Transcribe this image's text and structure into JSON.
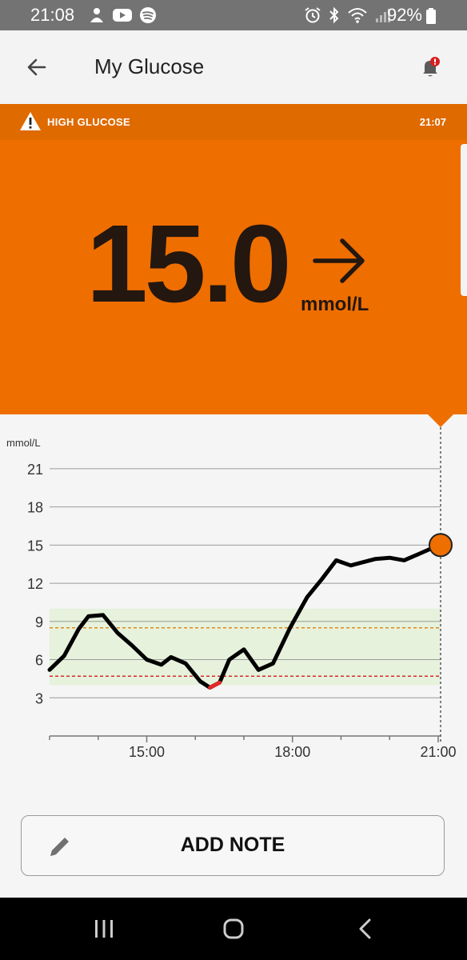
{
  "status_bar": {
    "time": "21:08",
    "battery": "92%",
    "left_icons": [
      "person-notification-icon",
      "youtube-icon",
      "spotify-icon"
    ],
    "right_icons": [
      "alarm-icon",
      "bluetooth-icon",
      "wifi-icon",
      "signal-icon"
    ]
  },
  "header": {
    "title": "My Glucose",
    "back_icon": "arrow-left-icon",
    "bell_icon": "bell-alert-icon"
  },
  "alert": {
    "label": "HIGH GLUCOSE",
    "time": "21:07",
    "icon": "warning-triangle-icon"
  },
  "reading": {
    "value": "15.0",
    "unit": "mmol/L",
    "trend_icon": "arrow-right-icon"
  },
  "colors": {
    "accent": "#ef6e00",
    "accent_dark": "#de6a00",
    "target_band": "#e6f2dc",
    "high_line": "#e08a1e",
    "low_line": "#d62b2b"
  },
  "chart_data": {
    "type": "line",
    "ylabel": "mmol/L",
    "yticks": [
      3,
      6,
      9,
      12,
      15,
      18,
      21
    ],
    "ylim": [
      0,
      22.5
    ],
    "xlim": [
      13.0,
      21.05
    ],
    "xticks": [
      15,
      18,
      21
    ],
    "xtick_labels": [
      "15:00",
      "18:00",
      "21:00"
    ],
    "target_range": [
      4.0,
      10.0
    ],
    "high_threshold": 8.5,
    "low_threshold": 4.7,
    "low_segment": [
      16.2,
      16.6
    ],
    "current_marker": {
      "x": 21.05,
      "y": 15.0
    },
    "series": [
      {
        "x": [
          13.0,
          13.3,
          13.6,
          13.8,
          14.1,
          14.4,
          14.7,
          15.0,
          15.3,
          15.5,
          15.8,
          16.1,
          16.3,
          16.5,
          16.7,
          17.0,
          17.3,
          17.6,
          17.95,
          18.3,
          18.6,
          18.9,
          19.2,
          19.4,
          19.7,
          20.0,
          20.3,
          20.6,
          20.9,
          21.05
        ],
        "y": [
          5.2,
          6.3,
          8.4,
          9.4,
          9.5,
          8.1,
          7.1,
          6.0,
          5.6,
          6.2,
          5.7,
          4.3,
          3.8,
          4.2,
          6.0,
          6.8,
          5.2,
          5.7,
          8.5,
          10.9,
          12.3,
          13.8,
          13.4,
          13.6,
          13.9,
          14.0,
          13.8,
          14.3,
          14.8,
          15.0
        ]
      }
    ]
  },
  "note_button": {
    "label": "ADD NOTE",
    "icon": "pencil-icon"
  },
  "nav_bar": {
    "icons": [
      "recent-apps-icon",
      "home-icon",
      "back-nav-icon"
    ]
  }
}
